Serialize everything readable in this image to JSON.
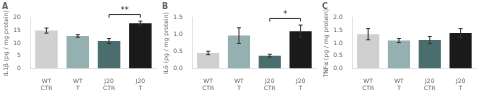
{
  "chart_data": [
    {
      "type": "bar",
      "title": "A",
      "ylabel": "IL1β (pg / mg protein)",
      "categories": [
        "WT\nCTR",
        "WT\nT",
        "J20\nCTR",
        "J20\nT"
      ],
      "values": [
        14.9,
        12.8,
        10.8,
        17.8
      ],
      "errors": [
        1.0,
        0.5,
        1.0,
        0.8
      ],
      "colors": [
        "#d0d0d0",
        "#94b0b0",
        "#4a6e6e",
        "#1a1a1a"
      ],
      "ylim": [
        0,
        20
      ],
      "yticks": [
        0,
        5,
        10,
        15,
        20
      ],
      "grid": false,
      "annotations": [
        {
          "text": "**",
          "between": [
            "J20\nCTR",
            "J20\nT"
          ]
        }
      ]
    },
    {
      "type": "bar",
      "title": "B",
      "ylabel": "IL6 (pg / mg protein)",
      "categories": [
        "WT\nCTR",
        "WT\nT",
        "J20\nCTR",
        "J20\nT"
      ],
      "values": [
        0.46,
        0.97,
        0.38,
        1.1
      ],
      "errors": [
        0.05,
        0.23,
        0.04,
        0.18
      ],
      "colors": [
        "#d0d0d0",
        "#94b0b0",
        "#4a6e6e",
        "#1a1a1a"
      ],
      "ylim": [
        0.0,
        1.5
      ],
      "yticks": [
        {
          "value": 0.0,
          "label": "0.0"
        },
        0.5,
        {
          "value": 1.0,
          "label": "1.0"
        },
        1.5
      ],
      "grid": false,
      "annotations": [
        {
          "text": "*",
          "between": [
            "J20\nCTR",
            "J20\nT"
          ]
        }
      ]
    },
    {
      "type": "bar",
      "title": "C",
      "ylabel": "TNFα (pg / mg protein)",
      "categories": [
        "WT\nCTR",
        "WT\nT",
        "J20\nCTR",
        "J20\nT"
      ],
      "values": [
        1.35,
        1.1,
        1.12,
        1.4
      ],
      "errors": [
        0.22,
        0.08,
        0.14,
        0.17
      ],
      "colors": [
        "#d0d0d0",
        "#94b0b0",
        "#4a6e6e",
        "#1a1a1a"
      ],
      "ylim": [
        0.0,
        2.0
      ],
      "yticks": [
        {
          "value": 0.0,
          "label": "0.0"
        },
        0.5,
        {
          "value": 1.0,
          "label": "1.0"
        },
        1.5,
        {
          "value": 2.0,
          "label": "2.0"
        }
      ],
      "grid": false
    }
  ]
}
